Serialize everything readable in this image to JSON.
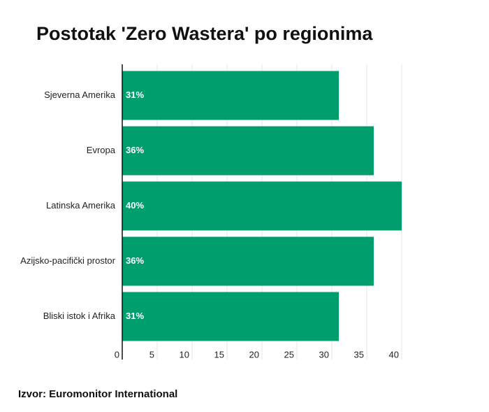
{
  "chart_data": {
    "type": "bar",
    "orientation": "horizontal",
    "title": "Postotak 'Zero Wastera' po regionima",
    "categories": [
      "Sjeverna Amerika",
      "Evropa",
      "Latinska Amerika",
      "Azijsko-pacifički prostor",
      "Bliski istok i Afrika"
    ],
    "values": [
      31,
      36,
      40,
      36,
      31
    ],
    "value_labels": [
      "31%",
      "36%",
      "40%",
      "36%",
      "31%"
    ],
    "color": "#009e6d",
    "xlim": [
      0,
      40
    ],
    "xticks": [
      0,
      5,
      10,
      15,
      20,
      25,
      30,
      35,
      40
    ],
    "grid": true,
    "source": "Izvor: Euromonitor International"
  }
}
